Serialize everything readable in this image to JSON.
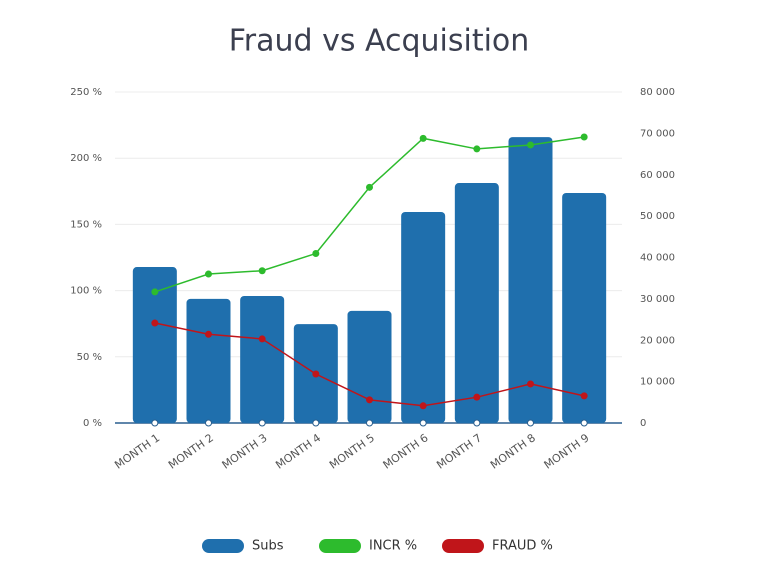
{
  "chart_data": {
    "type": "bar_line",
    "title": "Fraud vs Acquisition",
    "categories": [
      "MONTH 1",
      "MONTH 2",
      "MONTH 3",
      "MONTH 4",
      "MONTH 5",
      "MONTH 6",
      "MONTH 7",
      "MONTH 8",
      "MONTH 9"
    ],
    "series": [
      {
        "name": "Subs",
        "color": "#1f6fad",
        "axis": "y2",
        "type": "bar",
        "values": [
          37700,
          30000,
          30700,
          23900,
          27100,
          51000,
          58000,
          69100,
          55600
        ]
      },
      {
        "name": "INCR %",
        "color": "#2dbb2d",
        "type": "line",
        "values": [
          99,
          112.5,
          115,
          128,
          178,
          215,
          207,
          210,
          216
        ]
      },
      {
        "name": "FRAUD %",
        "color": "#c0151a",
        "type": "line",
        "values": [
          75.5,
          67,
          63.5,
          37,
          17.5,
          13,
          19.5,
          29.5,
          20.5
        ]
      }
    ],
    "ylim": [
      0,
      250
    ],
    "yticks": [
      {
        "value": 0,
        "label": "0 %"
      },
      {
        "value": 50,
        "label": "50 %"
      },
      {
        "value": 100,
        "label": "100 %"
      },
      {
        "value": 150,
        "label": "150 %"
      },
      {
        "value": 200,
        "label": "200 %"
      },
      {
        "value": 250,
        "label": "250 %"
      }
    ],
    "y2lim": [
      0,
      80000
    ],
    "y2ticks": [
      0,
      {
        "value": 10000,
        "label": "10 000"
      },
      {
        "value": 20000,
        "label": "20 000"
      },
      {
        "value": 30000,
        "label": "30 000"
      },
      {
        "value": 40000,
        "label": "40 000"
      },
      {
        "value": 50000,
        "label": "50 000"
      },
      {
        "value": 60000,
        "label": "60 000"
      },
      {
        "value": 70000,
        "label": "70 000"
      },
      {
        "value": 80000,
        "label": "80 000"
      }
    ],
    "grid": true
  }
}
